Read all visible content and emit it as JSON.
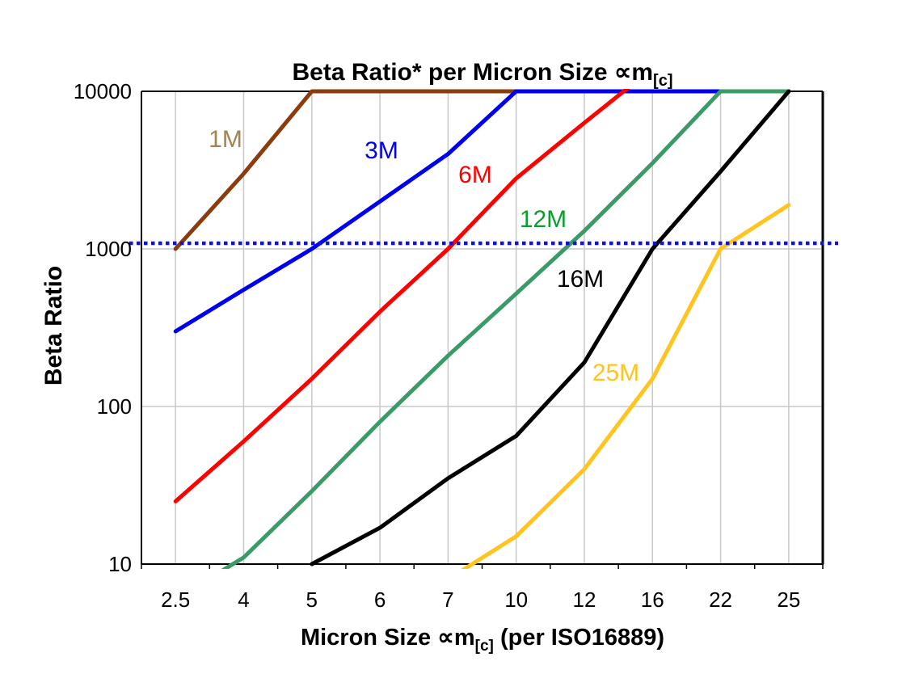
{
  "chart_data": {
    "type": "line",
    "title": {
      "text": "Beta Ratio* per Micron Size ∝m",
      "subscript": "[c]"
    },
    "xlabel": {
      "pre": "Micron Size ∝m",
      "sub": "[c]",
      "post": " (per ISO16889)"
    },
    "ylabel": "Beta Ratio",
    "x_categories": [
      "2.5",
      "4",
      "5",
      "6",
      "7",
      "10",
      "12",
      "16",
      "22",
      "25"
    ],
    "y_axis": {
      "scale": "log",
      "min": 10,
      "max": 10000,
      "tick_labels": [
        "10",
        "100",
        "1000",
        "10000"
      ],
      "tick_values": [
        10,
        100,
        1000,
        10000
      ]
    },
    "grid": {
      "vertical_at_categories": true,
      "horizontal_values": [
        100,
        1000
      ],
      "color": "#c8c8c8"
    },
    "reference_line": {
      "value": 1000,
      "style": "dotted",
      "color": "#1111dd"
    },
    "frame_color": "#000000",
    "series": [
      {
        "name": "1M",
        "color": "#8b3c0c",
        "label_color": "#a5824f",
        "label_pos": [
          279,
          182
        ],
        "points": [
          [
            "2.5",
            1000
          ],
          [
            "4",
            3000
          ],
          [
            "5",
            10000
          ],
          [
            "6",
            10000
          ],
          [
            "7",
            10000
          ],
          [
            "10",
            10000
          ]
        ]
      },
      {
        "name": "3M",
        "color": "#0000f0",
        "label_color": "#0000f0",
        "label_pos": [
          472,
          196
        ],
        "points": [
          [
            "2.5",
            300
          ],
          [
            "4",
            550
          ],
          [
            "5",
            1000
          ],
          [
            "6",
            2000
          ],
          [
            "7",
            4000
          ],
          [
            "10",
            10000
          ],
          [
            "12",
            10000
          ],
          [
            "16",
            10000
          ],
          [
            "22",
            10000
          ],
          [
            "25",
            10000
          ]
        ]
      },
      {
        "name": "6M",
        "color": "#ff0000",
        "label_color": "#ff0000",
        "label_pos": [
          588,
          226
        ],
        "points": [
          [
            "2.5",
            25
          ],
          [
            "4",
            60
          ],
          [
            "5",
            150
          ],
          [
            "6",
            400
          ],
          [
            "7",
            1000
          ],
          [
            "10",
            2800
          ],
          [
            "12",
            6300
          ],
          [
            "16",
            14000
          ]
        ]
      },
      {
        "name": "12M",
        "color": "#3a9b67",
        "label_color": "#0a9e2f",
        "label_pos": [
          672,
          281
        ],
        "points": [
          [
            "2.5",
            6
          ],
          [
            "4",
            11
          ],
          [
            "5",
            29
          ],
          [
            "6",
            80
          ],
          [
            "7",
            210
          ],
          [
            "10",
            520
          ],
          [
            "12",
            1300
          ],
          [
            "16",
            3500
          ],
          [
            "22",
            10000
          ],
          [
            "25",
            10000
          ]
        ]
      },
      {
        "name": "16M",
        "color": "#000000",
        "label_color": "#000000",
        "label_pos": [
          718,
          355
        ],
        "points": [
          [
            "5",
            10
          ],
          [
            "6",
            17
          ],
          [
            "7",
            35
          ],
          [
            "10",
            65
          ],
          [
            "12",
            190
          ],
          [
            "16",
            1000
          ],
          [
            "22",
            3100
          ],
          [
            "25",
            10000
          ]
        ]
      },
      {
        "name": "25M",
        "color": "#ffc41d",
        "label_color": "#ffc41d",
        "label_pos": [
          762,
          471
        ],
        "points": [
          [
            "7",
            8
          ],
          [
            "10",
            15
          ],
          [
            "12",
            40
          ],
          [
            "16",
            150
          ],
          [
            "22",
            1000
          ],
          [
            "25",
            1900
          ]
        ]
      }
    ]
  }
}
